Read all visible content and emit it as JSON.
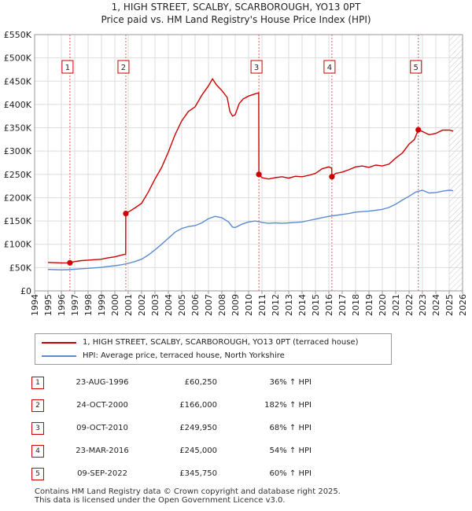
{
  "title_line1": "1, HIGH STREET, SCALBY, SCARBOROUGH, YO13 0PT",
  "title_line2": "Price paid vs. HM Land Registry's House Price Index (HPI)",
  "chart_data": {
    "type": "line",
    "title": "1, HIGH STREET, SCALBY, SCARBOROUGH, YO13 0PT — Price paid vs. HM Land Registry's House Price Index (HPI)",
    "xlabel": "",
    "ylabel": "",
    "xlim": [
      1994,
      2026
    ],
    "ylim": [
      0,
      550000
    ],
    "x_ticks": [
      1994,
      1995,
      1996,
      1997,
      1998,
      1999,
      2000,
      2001,
      2002,
      2003,
      2004,
      2005,
      2006,
      2007,
      2008,
      2009,
      2010,
      2011,
      2012,
      2013,
      2014,
      2015,
      2016,
      2017,
      2018,
      2019,
      2020,
      2021,
      2022,
      2023,
      2024,
      2025,
      2026
    ],
    "y_ticks": [
      {
        "value": 0,
        "label": "£0"
      },
      {
        "value": 50000,
        "label": "£50K"
      },
      {
        "value": 100000,
        "label": "£100K"
      },
      {
        "value": 150000,
        "label": "£150K"
      },
      {
        "value": 200000,
        "label": "£200K"
      },
      {
        "value": 250000,
        "label": "£250K"
      },
      {
        "value": 300000,
        "label": "£300K"
      },
      {
        "value": 350000,
        "label": "£350K"
      },
      {
        "value": 400000,
        "label": "£400K"
      },
      {
        "value": 450000,
        "label": "£450K"
      },
      {
        "value": 500000,
        "label": "£500K"
      },
      {
        "value": 550000,
        "label": "£550K"
      }
    ],
    "grid": true,
    "future_hatch_from": 2025.0,
    "series": [
      {
        "name": "1, HIGH STREET, SCALBY, SCARBOROUGH, YO13 0PT (terraced house)",
        "color": "#cc0000",
        "points": [
          [
            1995.0,
            61000
          ],
          [
            1995.5,
            60500
          ],
          [
            1996.0,
            60000
          ],
          [
            1996.64,
            60250
          ],
          [
            1997.0,
            63000
          ],
          [
            1997.5,
            65000
          ],
          [
            1998.0,
            66000
          ],
          [
            1998.5,
            67000
          ],
          [
            1999.0,
            68000
          ],
          [
            1999.5,
            71000
          ],
          [
            2000.0,
            73000
          ],
          [
            2000.5,
            77000
          ],
          [
            2000.81,
            79000
          ],
          [
            2000.82,
            166000
          ],
          [
            2001.0,
            169000
          ],
          [
            2001.5,
            178000
          ],
          [
            2002.0,
            188000
          ],
          [
            2002.5,
            212000
          ],
          [
            2003.0,
            240000
          ],
          [
            2003.5,
            265000
          ],
          [
            2004.0,
            298000
          ],
          [
            2004.5,
            335000
          ],
          [
            2005.0,
            365000
          ],
          [
            2005.5,
            385000
          ],
          [
            2006.0,
            395000
          ],
          [
            2006.5,
            420000
          ],
          [
            2007.0,
            440000
          ],
          [
            2007.3,
            455000
          ],
          [
            2007.6,
            442000
          ],
          [
            2008.0,
            430000
          ],
          [
            2008.4,
            415000
          ],
          [
            2008.6,
            385000
          ],
          [
            2008.8,
            375000
          ],
          [
            2009.0,
            378000
          ],
          [
            2009.3,
            402000
          ],
          [
            2009.6,
            412000
          ],
          [
            2010.0,
            418000
          ],
          [
            2010.5,
            423000
          ],
          [
            2010.76,
            425000
          ],
          [
            2010.77,
            249950
          ],
          [
            2011.0,
            243000
          ],
          [
            2011.5,
            240000
          ],
          [
            2012.0,
            243000
          ],
          [
            2012.5,
            245000
          ],
          [
            2013.0,
            242000
          ],
          [
            2013.5,
            246000
          ],
          [
            2014.0,
            245000
          ],
          [
            2014.5,
            248000
          ],
          [
            2015.0,
            252000
          ],
          [
            2015.5,
            262000
          ],
          [
            2016.0,
            266000
          ],
          [
            2016.22,
            263000
          ],
          [
            2016.23,
            245000
          ],
          [
            2016.5,
            252000
          ],
          [
            2017.0,
            255000
          ],
          [
            2017.5,
            260000
          ],
          [
            2018.0,
            266000
          ],
          [
            2018.5,
            268000
          ],
          [
            2019.0,
            265000
          ],
          [
            2019.5,
            270000
          ],
          [
            2020.0,
            268000
          ],
          [
            2020.5,
            272000
          ],
          [
            2021.0,
            285000
          ],
          [
            2021.5,
            296000
          ],
          [
            2022.0,
            315000
          ],
          [
            2022.4,
            325000
          ],
          [
            2022.69,
            345750
          ],
          [
            2023.0,
            342000
          ],
          [
            2023.5,
            335000
          ],
          [
            2024.0,
            338000
          ],
          [
            2024.5,
            345000
          ],
          [
            2025.0,
            345000
          ],
          [
            2025.3,
            343000
          ]
        ]
      },
      {
        "name": "HPI: Average price, terraced house, North Yorkshire",
        "color": "#5b8bd0",
        "points": [
          [
            1995.0,
            46000
          ],
          [
            1995.5,
            45500
          ],
          [
            1996.0,
            45000
          ],
          [
            1996.5,
            45500
          ],
          [
            1997.0,
            46500
          ],
          [
            1997.5,
            47500
          ],
          [
            1998.0,
            48500
          ],
          [
            1998.5,
            49500
          ],
          [
            1999.0,
            50500
          ],
          [
            1999.5,
            52500
          ],
          [
            2000.0,
            54000
          ],
          [
            2000.5,
            56000
          ],
          [
            2001.0,
            59000
          ],
          [
            2001.5,
            63000
          ],
          [
            2002.0,
            68000
          ],
          [
            2002.5,
            77000
          ],
          [
            2003.0,
            88000
          ],
          [
            2003.5,
            100000
          ],
          [
            2004.0,
            113000
          ],
          [
            2004.5,
            126000
          ],
          [
            2005.0,
            134000
          ],
          [
            2005.5,
            138000
          ],
          [
            2006.0,
            140000
          ],
          [
            2006.5,
            146000
          ],
          [
            2007.0,
            155000
          ],
          [
            2007.5,
            160000
          ],
          [
            2008.0,
            157000
          ],
          [
            2008.5,
            148000
          ],
          [
            2008.8,
            137000
          ],
          [
            2009.0,
            136000
          ],
          [
            2009.5,
            143000
          ],
          [
            2010.0,
            148000
          ],
          [
            2010.5,
            150000
          ],
          [
            2011.0,
            147000
          ],
          [
            2011.5,
            145000
          ],
          [
            2012.0,
            146000
          ],
          [
            2012.5,
            145000
          ],
          [
            2013.0,
            146000
          ],
          [
            2013.5,
            147000
          ],
          [
            2014.0,
            148000
          ],
          [
            2014.5,
            151000
          ],
          [
            2015.0,
            154000
          ],
          [
            2015.5,
            157000
          ],
          [
            2016.0,
            160000
          ],
          [
            2016.5,
            162000
          ],
          [
            2017.0,
            164000
          ],
          [
            2017.5,
            166000
          ],
          [
            2018.0,
            169000
          ],
          [
            2018.5,
            170000
          ],
          [
            2019.0,
            171000
          ],
          [
            2019.5,
            173000
          ],
          [
            2020.0,
            175000
          ],
          [
            2020.5,
            179000
          ],
          [
            2021.0,
            186000
          ],
          [
            2021.5,
            195000
          ],
          [
            2022.0,
            203000
          ],
          [
            2022.5,
            212000
          ],
          [
            2023.0,
            216000
          ],
          [
            2023.5,
            210000
          ],
          [
            2024.0,
            211000
          ],
          [
            2024.5,
            214000
          ],
          [
            2025.0,
            216000
          ],
          [
            2025.3,
            215000
          ]
        ]
      }
    ],
    "sales": [
      {
        "index": "1",
        "x": 1996.64,
        "price": 60250
      },
      {
        "index": "2",
        "x": 2000.82,
        "price": 166000
      },
      {
        "index": "3",
        "x": 2010.77,
        "price": 249950
      },
      {
        "index": "4",
        "x": 2016.23,
        "price": 245000
      },
      {
        "index": "5",
        "x": 2022.69,
        "price": 345750
      }
    ]
  },
  "legend": {
    "property_label": "1, HIGH STREET, SCALBY, SCARBOROUGH, YO13 0PT (terraced house)",
    "hpi_label": "HPI: Average price, terraced house, North Yorkshire",
    "property_color": "#cc0000",
    "hpi_color": "#5b8bd0"
  },
  "sales_table": [
    {
      "index": "1",
      "date": "23-AUG-1996",
      "price": "£60,250",
      "hpi": "36% ↑ HPI"
    },
    {
      "index": "2",
      "date": "24-OCT-2000",
      "price": "£166,000",
      "hpi": "182% ↑ HPI"
    },
    {
      "index": "3",
      "date": "09-OCT-2010",
      "price": "£249,950",
      "hpi": "68% ↑ HPI"
    },
    {
      "index": "4",
      "date": "23-MAR-2016",
      "price": "£245,000",
      "hpi": "54% ↑ HPI"
    },
    {
      "index": "5",
      "date": "09-SEP-2022",
      "price": "£345,750",
      "hpi": "60% ↑ HPI"
    }
  ],
  "footer": {
    "line1": "Contains HM Land Registry data © Crown copyright and database right 2025.",
    "line2": "This data is licensed under the Open Government Licence v3.0."
  }
}
